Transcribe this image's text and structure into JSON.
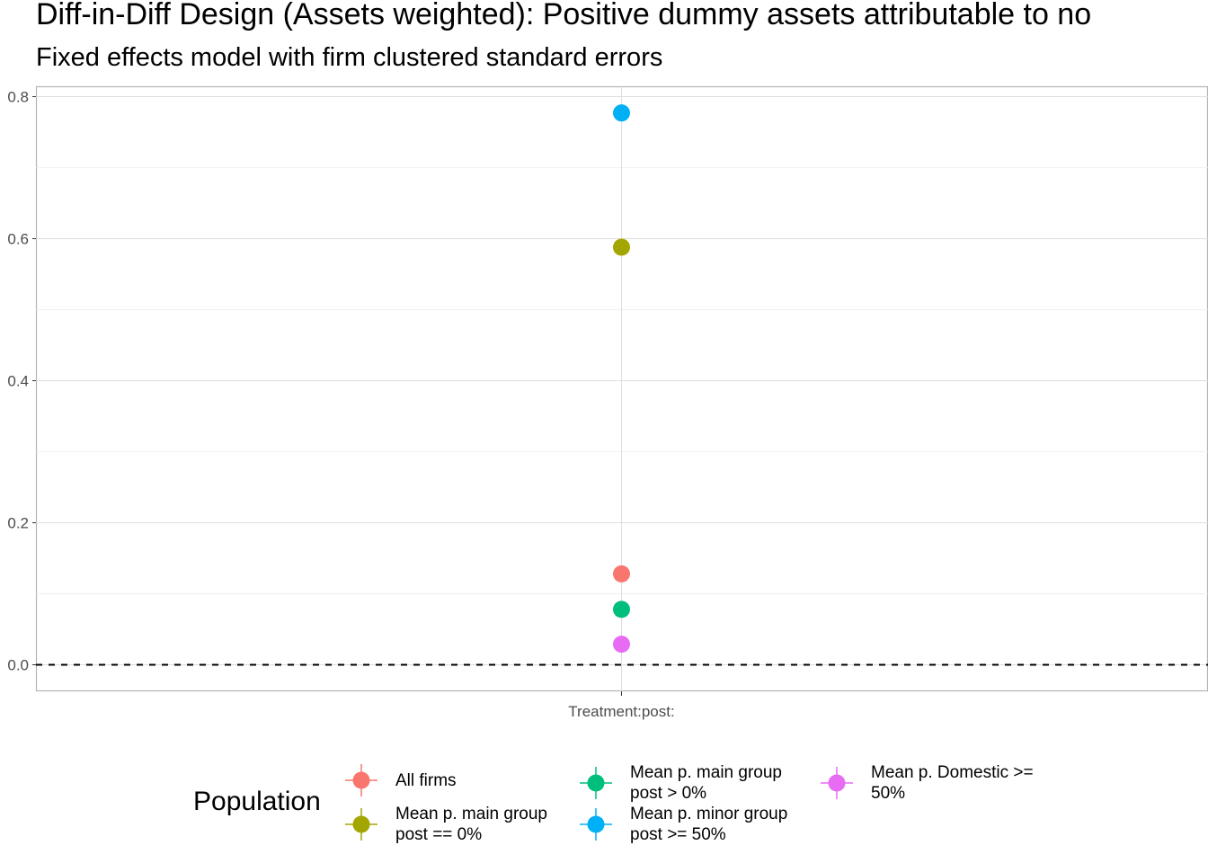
{
  "chart_data": {
    "type": "scatter",
    "title": "Diff-in-Diff Design (Assets weighted): Positive dummy assets attributable to no",
    "subtitle": "Fixed effects model with firm clustered standard errors",
    "xlabel": "",
    "ylabel": "",
    "categories": [
      "Treatment:post:"
    ],
    "ylim": [
      -0.04,
      0.805
    ],
    "yticks": [
      0.0,
      0.2,
      0.4,
      0.6,
      0.8
    ],
    "ytick_labels": [
      "0.0",
      "0.2",
      "0.4",
      "0.6",
      "0.8"
    ],
    "reference_line": {
      "y": 0,
      "style": "dashed"
    },
    "grid": true,
    "legend": {
      "title": "Population",
      "placement": "bottom"
    },
    "series": [
      {
        "name": "All firms",
        "color": "#F8766D",
        "x": "Treatment:post:",
        "y": 0.128
      },
      {
        "name": "Mean p. main group post == 0%",
        "color": "#A3A500",
        "x": "Treatment:post:",
        "y": 0.588
      },
      {
        "name": "Mean p. main group post > 0%",
        "color": "#00BF7D",
        "x": "Treatment:post:",
        "y": 0.078
      },
      {
        "name": "Mean p. minor group post >= 50%",
        "color": "#00B0F6",
        "x": "Treatment:post:",
        "y": 0.777
      },
      {
        "name": "Mean p. Domestic >= 50%",
        "color": "#E76BF3",
        "x": "Treatment:post:",
        "y": 0.029
      }
    ]
  },
  "legend_labels": [
    "All firms",
    "Mean p. main group\npost == 0%",
    "Mean p. main group\npost > 0%",
    "Mean p. minor group\npost >= 50%",
    "Mean p. Domestic >=\n50%"
  ]
}
